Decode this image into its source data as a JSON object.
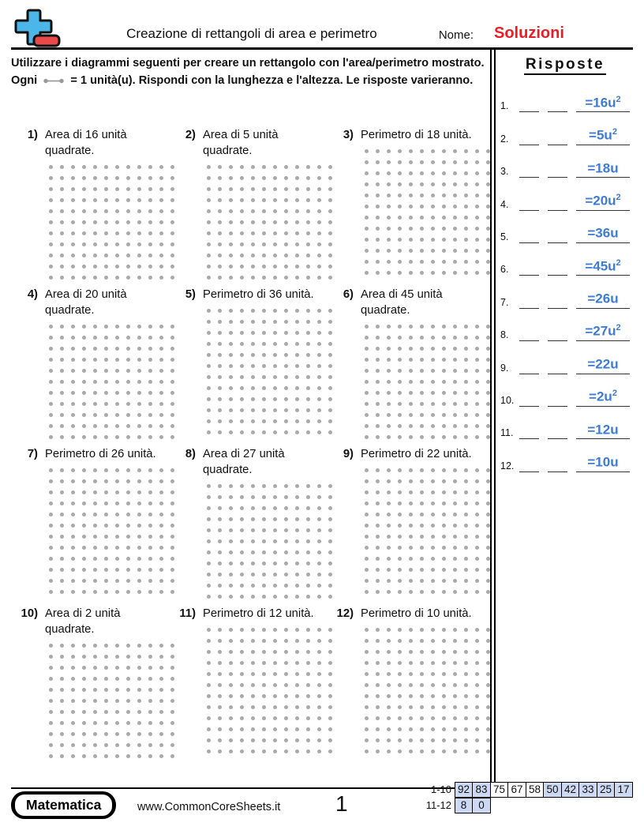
{
  "header": {
    "title": "Creazione di rettangoli di area e perimetro",
    "name_label": "Nome:",
    "solutions_label": "Soluzioni"
  },
  "instructions": {
    "before_glyph": "Utilizzare i diagrammi seguenti per creare un rettangolo con l'area/perimetro mostrato. Ogni",
    "after_glyph": "= 1 unità(u). Rispondi con la lunghezza e l'altezza. Le risposte varieranno."
  },
  "answers": {
    "title": "Risposte",
    "rows": [
      {
        "num": "1.",
        "value": "=16u",
        "sup": "2"
      },
      {
        "num": "2.",
        "value": "=5u",
        "sup": "2"
      },
      {
        "num": "3.",
        "value": "=18u",
        "sup": ""
      },
      {
        "num": "4.",
        "value": "=20u",
        "sup": "2"
      },
      {
        "num": "5.",
        "value": "=36u",
        "sup": ""
      },
      {
        "num": "6.",
        "value": "=45u",
        "sup": "2"
      },
      {
        "num": "7.",
        "value": "=26u",
        "sup": ""
      },
      {
        "num": "8.",
        "value": "=27u",
        "sup": "2"
      },
      {
        "num": "9.",
        "value": "=22u",
        "sup": ""
      },
      {
        "num": "10.",
        "value": "=2u",
        "sup": "2"
      },
      {
        "num": "11.",
        "value": "=12u",
        "sup": ""
      },
      {
        "num": "12.",
        "value": "=10u",
        "sup": ""
      }
    ]
  },
  "problems": [
    {
      "num": "1)",
      "text": "Area di 16 unità quadrate.",
      "grid": {
        "cols": 12,
        "rows": 11
      }
    },
    {
      "num": "2)",
      "text": "Area di 5 unità quadrate.",
      "grid": {
        "cols": 12,
        "rows": 11
      }
    },
    {
      "num": "3)",
      "text": "Perimetro di 18 unità.",
      "grid": {
        "cols": 12,
        "rows": 12
      }
    },
    {
      "num": "4)",
      "text": "Area di 20 unità quadrate.",
      "grid": {
        "cols": 12,
        "rows": 11
      }
    },
    {
      "num": "5)",
      "text": "Perimetro di 36 unità.",
      "grid": {
        "cols": 12,
        "rows": 12
      }
    },
    {
      "num": "6)",
      "text": "Area di 45 unità quadrate.",
      "grid": {
        "cols": 12,
        "rows": 11
      }
    },
    {
      "num": "7)",
      "text": "Perimetro di 26 unità.",
      "grid": {
        "cols": 12,
        "rows": 12
      }
    },
    {
      "num": "8)",
      "text": "Area di 27 unità quadrate.",
      "grid": {
        "cols": 12,
        "rows": 11
      }
    },
    {
      "num": "9)",
      "text": "Perimetro di 22 unità.",
      "grid": {
        "cols": 12,
        "rows": 12
      }
    },
    {
      "num": "10)",
      "text": "Area di 2 unità quadrate.",
      "grid": {
        "cols": 12,
        "rows": 11
      }
    },
    {
      "num": "11)",
      "text": "Perimetro di 12 unità.",
      "grid": {
        "cols": 12,
        "rows": 12
      }
    },
    {
      "num": "12)",
      "text": "Perimetro di 10 unità.",
      "grid": {
        "cols": 12,
        "rows": 12
      }
    }
  ],
  "footer": {
    "brand": "Matematica",
    "url": "www.CommonCoreSheets.it",
    "page_number": "1",
    "score_table": {
      "rows": [
        {
          "label": "1-10",
          "cells": [
            {
              "value": "92",
              "shaded": true
            },
            {
              "value": "83",
              "shaded": true
            },
            {
              "value": "75",
              "shaded": false
            },
            {
              "value": "67",
              "shaded": false
            },
            {
              "value": "58",
              "shaded": false
            },
            {
              "value": "50",
              "shaded": true
            },
            {
              "value": "42",
              "shaded": true
            },
            {
              "value": "33",
              "shaded": true
            },
            {
              "value": "25",
              "shaded": true
            },
            {
              "value": "17",
              "shaded": true
            }
          ]
        },
        {
          "label": "11-12",
          "cells": [
            {
              "value": "8",
              "shaded": true
            },
            {
              "value": "0",
              "shaded": true
            }
          ]
        }
      ]
    }
  },
  "colors": {
    "solutions_red": "#ED1C24",
    "answer_blue": "#3D7BD4",
    "score_shade": "#CDD9F2",
    "dot_gray": "#A9A9A9",
    "logo_blue": "#4CB6E8",
    "logo_red": "#E84A4A"
  }
}
